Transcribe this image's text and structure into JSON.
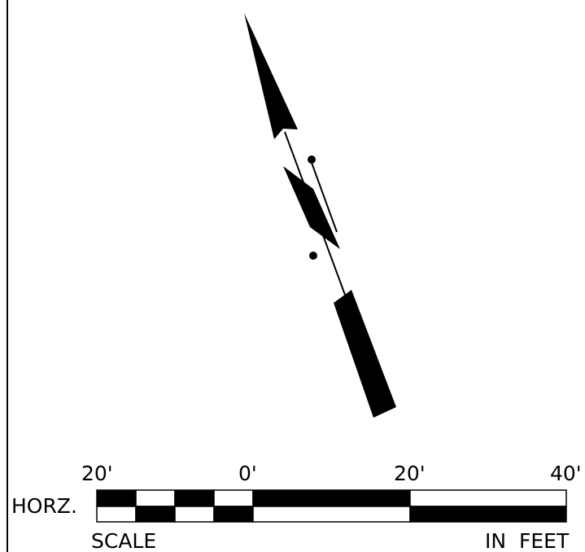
{
  "scale_bar": {
    "tick_labels": [
      "20'",
      "0'",
      "20'",
      "40'"
    ],
    "left_label": "HORZ.",
    "bottom_left_label": "SCALE",
    "bottom_right_label": "IN  FEET"
  },
  "colors": {
    "ink": "#000000",
    "paper": "#ffffff"
  }
}
